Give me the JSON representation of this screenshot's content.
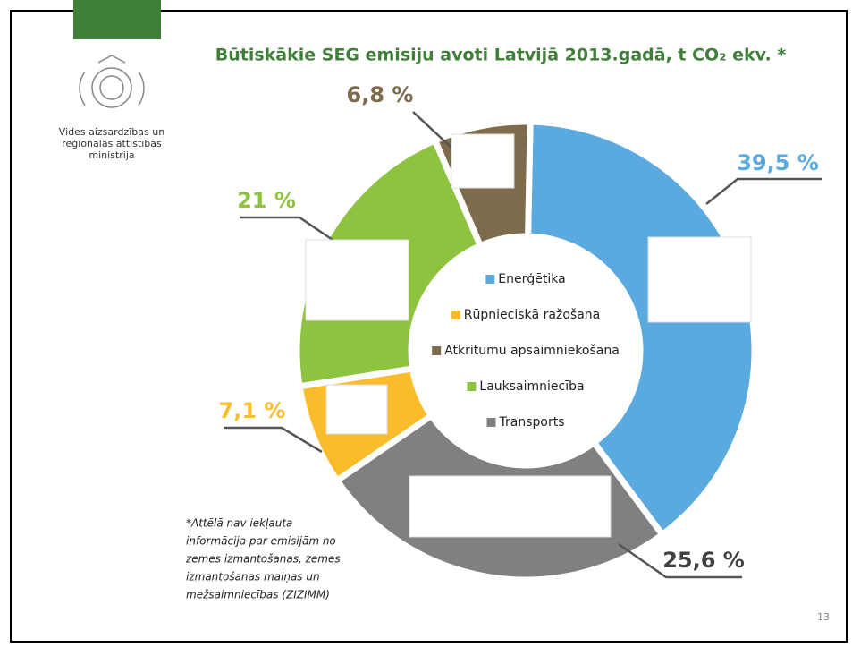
{
  "chart_data": {
    "type": "pie",
    "title": "Būtiskākie SEG emisiju avoti Latvijā 2013.gadā, t CO₂ ekv. *",
    "categories": [
      "Enerģētika",
      "Rūpnieciskā ražošana",
      "Atkritumu apsaimniekošana",
      "Lauksaimniecība",
      "Transports"
    ],
    "values": [
      39.5,
      7.1,
      6.8,
      21,
      25.6
    ],
    "value_labels": [
      "39,5 %",
      "7,1 %",
      "6,8 %",
      "21 %",
      "25,6 %"
    ],
    "colors": [
      "#5aaadf",
      "#fbbc2c",
      "#7d6b4b",
      "#8dc33f",
      "#808080"
    ],
    "value_label_colors": [
      "#5aaadf",
      "#fbbc2c",
      "#7d6b4b",
      "#8dc33f",
      "#404040"
    ]
  },
  "ministry": [
    "Vides aizsardzības un",
    "reģionālās attīstības",
    "ministrija"
  ],
  "footnote": [
    "*Attēlā nav iekļauta",
    "informācija par emisijām no",
    "zemes izmantošanas, zemes",
    "izmantošanas maiņas un",
    "mežsaimniecības (ZIZIMM)"
  ],
  "page_number": "13"
}
